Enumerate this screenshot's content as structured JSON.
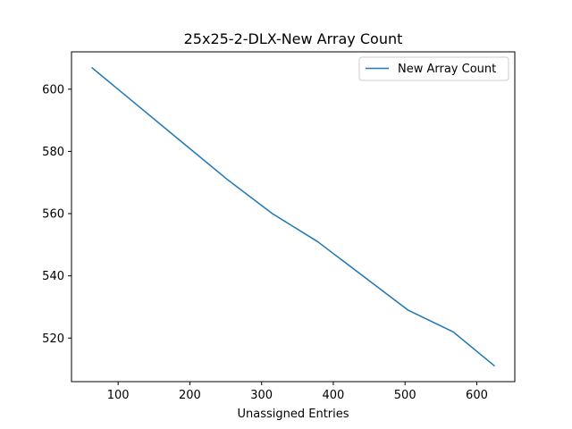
{
  "chart_data": {
    "type": "line",
    "title": "25x25-2-DLX-New Array Count",
    "xlabel": "Unassigned Entries",
    "ylabel": "",
    "xlim": [
      35,
      653
    ],
    "ylim": [
      506,
      612
    ],
    "xticks": [
      100,
      200,
      300,
      400,
      500,
      600
    ],
    "yticks": [
      520,
      540,
      560,
      580,
      600
    ],
    "grid": false,
    "legend_position": "upper-right",
    "series": [
      {
        "name": "New Array Count",
        "color": "#1f77b4",
        "x": [
          63,
          126,
          189,
          252,
          315,
          378,
          441,
          504,
          567,
          625
        ],
        "y": [
          607,
          595,
          583,
          571,
          560,
          551,
          540,
          529,
          522,
          511
        ]
      }
    ]
  }
}
